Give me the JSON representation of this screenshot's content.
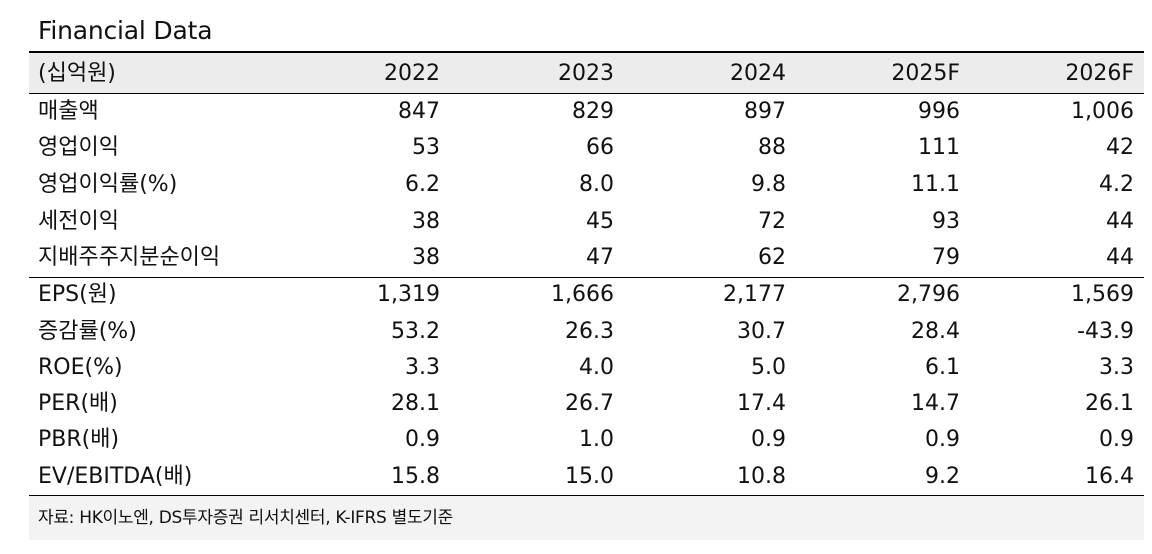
{
  "title": "Financial Data",
  "header": {
    "unit_label": "(십억원)",
    "years": [
      "2022",
      "2023",
      "2024",
      "2025F",
      "2026F"
    ]
  },
  "rows": [
    {
      "label": "매출액",
      "values": [
        "847",
        "829",
        "897",
        "996",
        "1,006"
      ]
    },
    {
      "label": "영업이익",
      "values": [
        "53",
        "66",
        "88",
        "111",
        "42"
      ]
    },
    {
      "label": "영업이익률(%)",
      "values": [
        "6.2",
        "8.0",
        "9.8",
        "11.1",
        "4.2"
      ]
    },
    {
      "label": "세전이익",
      "values": [
        "38",
        "45",
        "72",
        "93",
        "44"
      ]
    },
    {
      "label": "지배주주지분순이익",
      "values": [
        "38",
        "47",
        "62",
        "79",
        "44"
      ]
    },
    {
      "label": "EPS(원)",
      "values": [
        "1,319",
        "1,666",
        "2,177",
        "2,796",
        "1,569"
      ]
    },
    {
      "label": "증감률(%)",
      "values": [
        "53.2",
        "26.3",
        "30.7",
        "28.4",
        "-43.9"
      ]
    },
    {
      "label": "ROE(%)",
      "values": [
        "3.3",
        "4.0",
        "5.0",
        "6.1",
        "3.3"
      ]
    },
    {
      "label": "PER(배)",
      "values": [
        "28.1",
        "26.7",
        "17.4",
        "14.7",
        "26.1"
      ]
    },
    {
      "label": "PBR(배)",
      "values": [
        "0.9",
        "1.0",
        "0.9",
        "0.9",
        "0.9"
      ]
    },
    {
      "label": "EV/EBITDA(배)",
      "values": [
        "15.8",
        "15.0",
        "10.8",
        "9.2",
        "16.4"
      ]
    }
  ],
  "source": "자료: HK이노엔, DS투자증권 리서치센터, K-IFRS 별도기준"
}
